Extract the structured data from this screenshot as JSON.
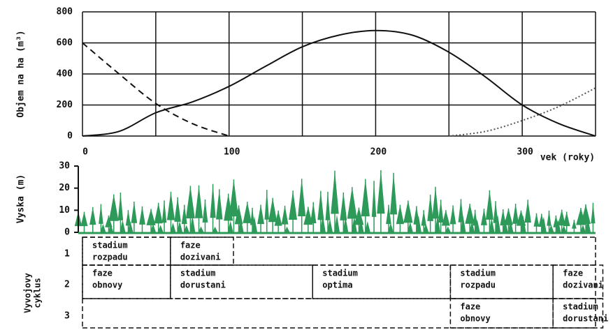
{
  "chart_data": {
    "type": "line",
    "y_label": "Objem na ha (m³)",
    "x_label": "vek (roky)",
    "xlim": [
      0,
      350
    ],
    "ylim": [
      0,
      800
    ],
    "xticks": [
      0,
      100,
      200,
      300
    ],
    "xgrid": [
      50,
      150,
      250,
      350
    ],
    "yticks": [
      0,
      200,
      400,
      600,
      800
    ],
    "grid": true,
    "series": [
      {
        "style": "solid",
        "color": "#111111",
        "x": [
          0,
          25,
          50,
          75,
          100,
          125,
          150,
          175,
          200,
          225,
          250,
          275,
          300,
          325,
          350
        ],
        "values": [
          0,
          30,
          150,
          220,
          320,
          450,
          575,
          650,
          680,
          650,
          540,
          380,
          200,
          80,
          0
        ]
      },
      {
        "style": "dashed",
        "color": "#111111",
        "x": [
          0,
          25,
          50,
          75,
          100
        ],
        "values": [
          600,
          400,
          210,
          80,
          0
        ]
      },
      {
        "style": "dotted",
        "color": "#555555",
        "x": [
          250,
          275,
          300,
          325,
          350
        ],
        "values": [
          0,
          30,
          100,
          190,
          310
        ]
      }
    ]
  },
  "forest": {
    "y_label": "Vyska (m)",
    "ylim": [
      0,
      30
    ],
    "yticks": [
      0,
      10,
      20,
      30
    ],
    "color": "#2e9a5a"
  },
  "cycle_table": {
    "side_label": [
      "Vyvojovy",
      "cyklus"
    ],
    "rows": [
      {
        "label": "1",
        "cells": [
          {
            "lines": [
              "stadium",
              "rozpadu"
            ],
            "from": 0,
            "to": 60
          },
          {
            "lines": [
              "faze",
              "dozivani"
            ],
            "from": 60,
            "to": 103
          }
        ]
      },
      {
        "label": "2",
        "cells": [
          {
            "lines": [
              "faze",
              "obnovy"
            ],
            "from": 0,
            "to": 60
          },
          {
            "lines": [
              "stadium",
              "dorustani"
            ],
            "from": 60,
            "to": 157
          },
          {
            "lines": [
              "stadium",
              "optima"
            ],
            "from": 157,
            "to": 251
          },
          {
            "lines": [
              "stadium",
              "rozpadu"
            ],
            "from": 251,
            "to": 321
          },
          {
            "lines": [
              "faze",
              "dozivani"
            ],
            "from": 321,
            "to": 355
          }
        ]
      },
      {
        "label": "3",
        "cells": [
          {
            "lines": [
              "faze",
              "obnovy"
            ],
            "from": 251,
            "to": 321
          },
          {
            "lines": [
              "stadium",
              "dorustani"
            ],
            "from": 321,
            "to": 355
          }
        ]
      }
    ]
  }
}
